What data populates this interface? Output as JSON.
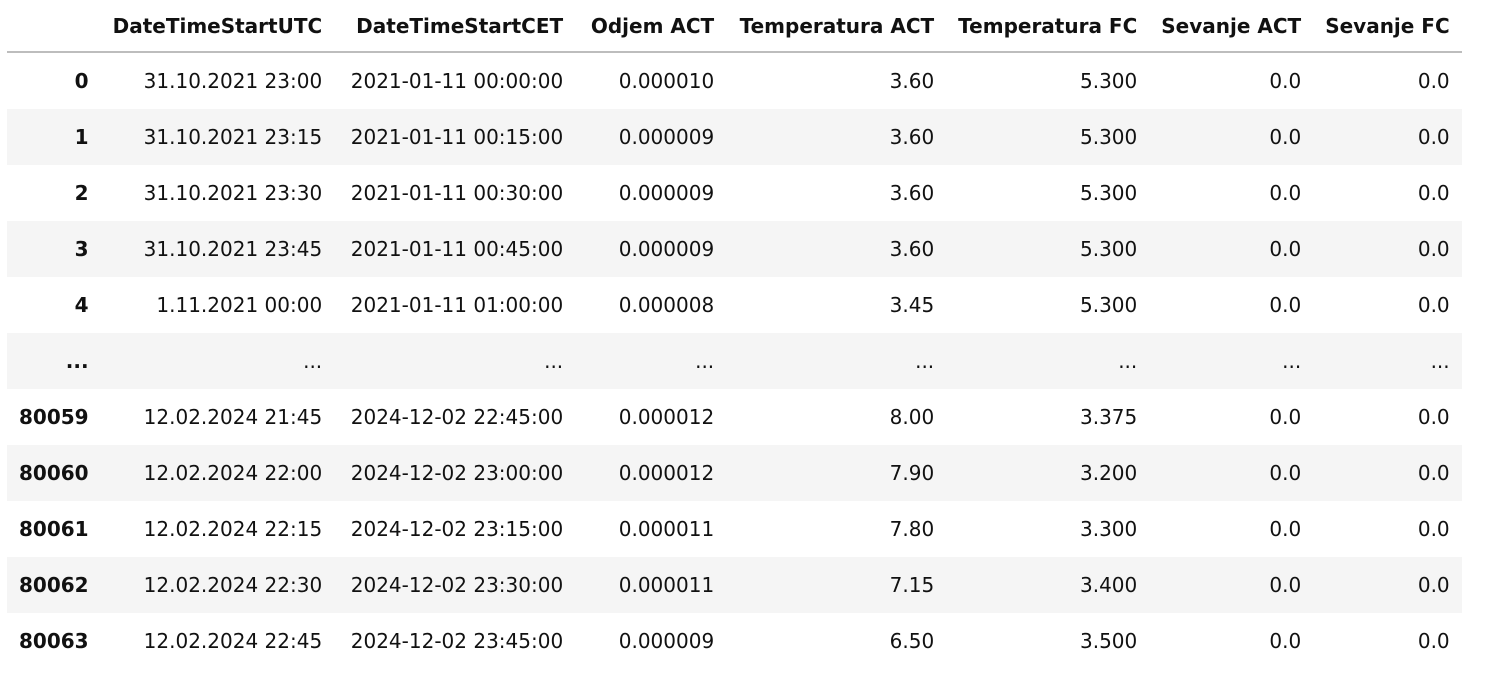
{
  "table": {
    "columns": [
      "",
      "DateTimeStartUTC",
      "DateTimeStartCET",
      "Odjem ACT",
      "Temperatura ACT",
      "Temperatura FC",
      "Sevanje ACT",
      "Sevanje FC"
    ],
    "rows": [
      {
        "index": "0",
        "cells": [
          "31.10.2021 23:00",
          "2021-01-11 00:00:00",
          "0.000010",
          "3.60",
          "5.300",
          "0.0",
          "0.0"
        ]
      },
      {
        "index": "1",
        "cells": [
          "31.10.2021 23:15",
          "2021-01-11 00:15:00",
          "0.000009",
          "3.60",
          "5.300",
          "0.0",
          "0.0"
        ]
      },
      {
        "index": "2",
        "cells": [
          "31.10.2021 23:30",
          "2021-01-11 00:30:00",
          "0.000009",
          "3.60",
          "5.300",
          "0.0",
          "0.0"
        ]
      },
      {
        "index": "3",
        "cells": [
          "31.10.2021 23:45",
          "2021-01-11 00:45:00",
          "0.000009",
          "3.60",
          "5.300",
          "0.0",
          "0.0"
        ]
      },
      {
        "index": "4",
        "cells": [
          "1.11.2021 00:00",
          "2021-01-11 01:00:00",
          "0.000008",
          "3.45",
          "5.300",
          "0.0",
          "0.0"
        ]
      },
      {
        "index": "...",
        "cells": [
          "...",
          "...",
          "...",
          "...",
          "...",
          "...",
          "..."
        ]
      },
      {
        "index": "80059",
        "cells": [
          "12.02.2024 21:45",
          "2024-12-02 22:45:00",
          "0.000012",
          "8.00",
          "3.375",
          "0.0",
          "0.0"
        ]
      },
      {
        "index": "80060",
        "cells": [
          "12.02.2024 22:00",
          "2024-12-02 23:00:00",
          "0.000012",
          "7.90",
          "3.200",
          "0.0",
          "0.0"
        ]
      },
      {
        "index": "80061",
        "cells": [
          "12.02.2024 22:15",
          "2024-12-02 23:15:00",
          "0.000011",
          "7.80",
          "3.300",
          "0.0",
          "0.0"
        ]
      },
      {
        "index": "80062",
        "cells": [
          "12.02.2024 22:30",
          "2024-12-02 23:30:00",
          "0.000011",
          "7.15",
          "3.400",
          "0.0",
          "0.0"
        ]
      },
      {
        "index": "80063",
        "cells": [
          "12.02.2024 22:45",
          "2024-12-02 23:45:00",
          "0.000009",
          "6.50",
          "3.500",
          "0.0",
          "0.0"
        ]
      }
    ]
  }
}
